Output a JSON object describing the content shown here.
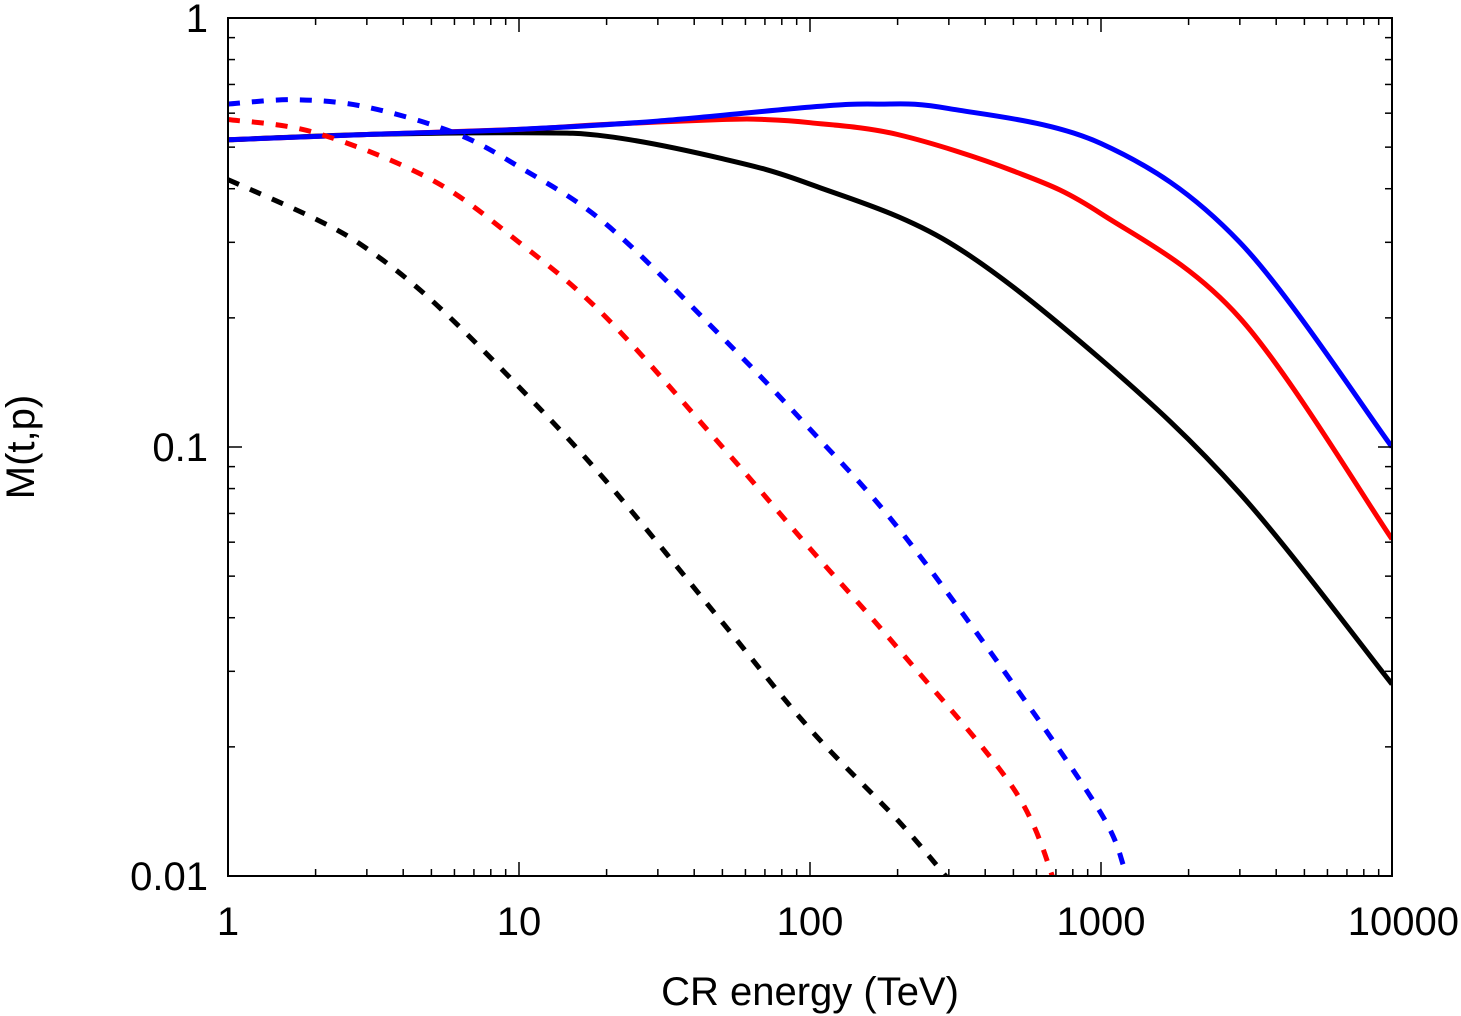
{
  "chart_data": {
    "type": "line",
    "xlabel": "CR energy (TeV)",
    "ylabel": "M(t,p)",
    "xscale": "log",
    "yscale": "log",
    "xlim": [
      1,
      10000
    ],
    "ylim": [
      0.01,
      1
    ],
    "grid": false,
    "legend": "none",
    "x_ticks": [
      {
        "value": 1,
        "label": "1"
      },
      {
        "value": 10,
        "label": "10"
      },
      {
        "value": 100,
        "label": "100"
      },
      {
        "value": 1000,
        "label": "1000"
      },
      {
        "value": 10000,
        "label": "10000"
      }
    ],
    "y_ticks": [
      {
        "value": 0.01,
        "label": "0.01"
      },
      {
        "value": 0.1,
        "label": "0.1"
      },
      {
        "value": 1,
        "label": "1"
      }
    ],
    "series": [
      {
        "color": "#000000",
        "style": "solid",
        "points": [
          [
            1,
            0.52
          ],
          [
            3,
            0.535
          ],
          [
            10,
            0.54
          ],
          [
            20,
            0.53
          ],
          [
            50,
            0.47
          ],
          [
            100,
            0.41
          ],
          [
            300,
            0.3
          ],
          [
            1000,
            0.16
          ],
          [
            3000,
            0.078
          ],
          [
            10000,
            0.028
          ]
        ]
      },
      {
        "color": "#ff0000",
        "style": "solid",
        "points": [
          [
            1,
            0.52
          ],
          [
            3,
            0.535
          ],
          [
            10,
            0.55
          ],
          [
            20,
            0.565
          ],
          [
            50,
            0.58
          ],
          [
            70,
            0.58
          ],
          [
            100,
            0.57
          ],
          [
            200,
            0.535
          ],
          [
            500,
            0.44
          ],
          [
            1000,
            0.35
          ],
          [
            3000,
            0.2
          ],
          [
            10000,
            0.061
          ]
        ]
      },
      {
        "color": "#0000ff",
        "style": "solid",
        "points": [
          [
            1,
            0.52
          ],
          [
            3,
            0.535
          ],
          [
            10,
            0.55
          ],
          [
            30,
            0.575
          ],
          [
            100,
            0.62
          ],
          [
            170,
            0.63
          ],
          [
            300,
            0.615
          ],
          [
            1000,
            0.51
          ],
          [
            3000,
            0.3
          ],
          [
            10000,
            0.1
          ]
        ]
      },
      {
        "color": "#000000",
        "style": "dashed",
        "points": [
          [
            1,
            0.42
          ],
          [
            2,
            0.34
          ],
          [
            3,
            0.29
          ],
          [
            5,
            0.22
          ],
          [
            10,
            0.138
          ],
          [
            20,
            0.083
          ],
          [
            50,
            0.039
          ],
          [
            100,
            0.022
          ],
          [
            200,
            0.0135
          ],
          [
            300,
            0.0098
          ]
        ]
      },
      {
        "color": "#ff0000",
        "style": "dashed",
        "points": [
          [
            1,
            0.58
          ],
          [
            2,
            0.54
          ],
          [
            5,
            0.42
          ],
          [
            10,
            0.3
          ],
          [
            20,
            0.2
          ],
          [
            50,
            0.1
          ],
          [
            100,
            0.058
          ],
          [
            200,
            0.034
          ],
          [
            500,
            0.016
          ],
          [
            700,
            0.0095
          ]
        ]
      },
      {
        "color": "#0000ff",
        "style": "dashed",
        "points": [
          [
            1,
            0.63
          ],
          [
            1.7,
            0.645
          ],
          [
            3,
            0.62
          ],
          [
            6,
            0.54
          ],
          [
            10,
            0.45
          ],
          [
            20,
            0.33
          ],
          [
            50,
            0.18
          ],
          [
            100,
            0.11
          ],
          [
            200,
            0.065
          ],
          [
            500,
            0.028
          ],
          [
            1000,
            0.014
          ],
          [
            1200,
            0.0105
          ]
        ]
      }
    ]
  }
}
